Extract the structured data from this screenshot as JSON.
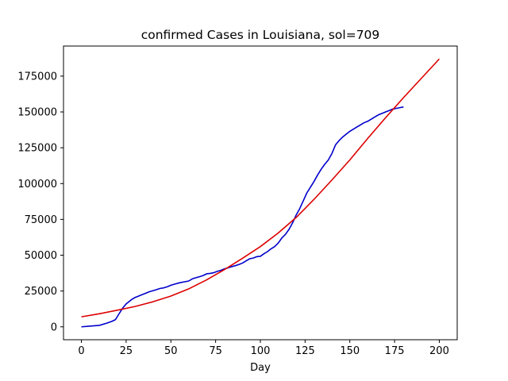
{
  "chart_data": {
    "type": "line",
    "title": "confirmed Cases in Louisiana, sol=709",
    "xlabel": "Day",
    "ylabel": "",
    "xlim": [
      -10,
      210
    ],
    "ylim": [
      -9000,
      196000
    ],
    "xticks": [
      0,
      25,
      50,
      75,
      100,
      125,
      150,
      175,
      200
    ],
    "yticks": [
      0,
      25000,
      50000,
      75000,
      100000,
      125000,
      150000,
      175000
    ],
    "grid": false,
    "legend": "none",
    "series": [
      {
        "color": "#0000cc",
        "x": [
          0,
          5,
          10,
          14,
          17,
          19,
          20,
          21,
          22,
          23,
          24,
          25,
          26,
          27,
          28,
          29,
          30,
          32,
          34,
          36,
          38,
          40,
          42,
          44,
          46,
          48,
          50,
          52,
          55,
          58,
          60,
          62,
          64,
          66,
          68,
          70,
          72,
          74,
          76,
          78,
          80,
          82,
          84,
          86,
          88,
          90,
          92,
          94,
          96,
          98,
          100,
          102,
          104,
          106,
          108,
          110,
          112,
          114,
          116,
          118,
          120,
          122,
          124,
          126,
          128,
          130,
          132,
          134,
          136,
          138,
          140,
          142,
          144,
          146,
          148,
          150,
          152,
          154,
          156,
          158,
          160,
          162,
          164,
          166,
          168,
          170,
          172,
          174,
          176,
          178,
          180
        ],
        "values": [
          0,
          500,
          1000,
          2500,
          3800,
          5000,
          7000,
          9000,
          11000,
          13000,
          14500,
          16000,
          17000,
          18000,
          19000,
          19800,
          20500,
          21500,
          22500,
          23500,
          24500,
          25200,
          26000,
          26800,
          27200,
          28000,
          29000,
          29800,
          30800,
          31500,
          32000,
          33500,
          34300,
          35000,
          35800,
          37000,
          37300,
          37800,
          38700,
          39500,
          40500,
          41200,
          42000,
          42700,
          43500,
          44500,
          46000,
          47500,
          48000,
          49000,
          49200,
          51000,
          52500,
          54500,
          56000,
          58500,
          62000,
          64500,
          68000,
          72500,
          78000,
          82500,
          88000,
          93500,
          97500,
          101500,
          106000,
          110000,
          113500,
          116500,
          121000,
          127000,
          130000,
          132500,
          134500,
          136500,
          138000,
          139500,
          141000,
          142500,
          143500,
          145000,
          146500,
          148000,
          149000,
          150000,
          151000,
          152000,
          152500,
          153000,
          153500
        ]
      },
      {
        "color": "#dd0000",
        "x": [
          0,
          10,
          20,
          30,
          40,
          50,
          60,
          70,
          80,
          90,
          100,
          110,
          120,
          130,
          140,
          150,
          160,
          170,
          180,
          190,
          200
        ],
        "values": [
          7000,
          9100,
          11600,
          14200,
          17500,
          21500,
          26500,
          32800,
          40000,
          47800,
          56000,
          65500,
          76300,
          89000,
          102500,
          116500,
          131500,
          146000,
          160000,
          173500,
          187000
        ]
      }
    ]
  }
}
